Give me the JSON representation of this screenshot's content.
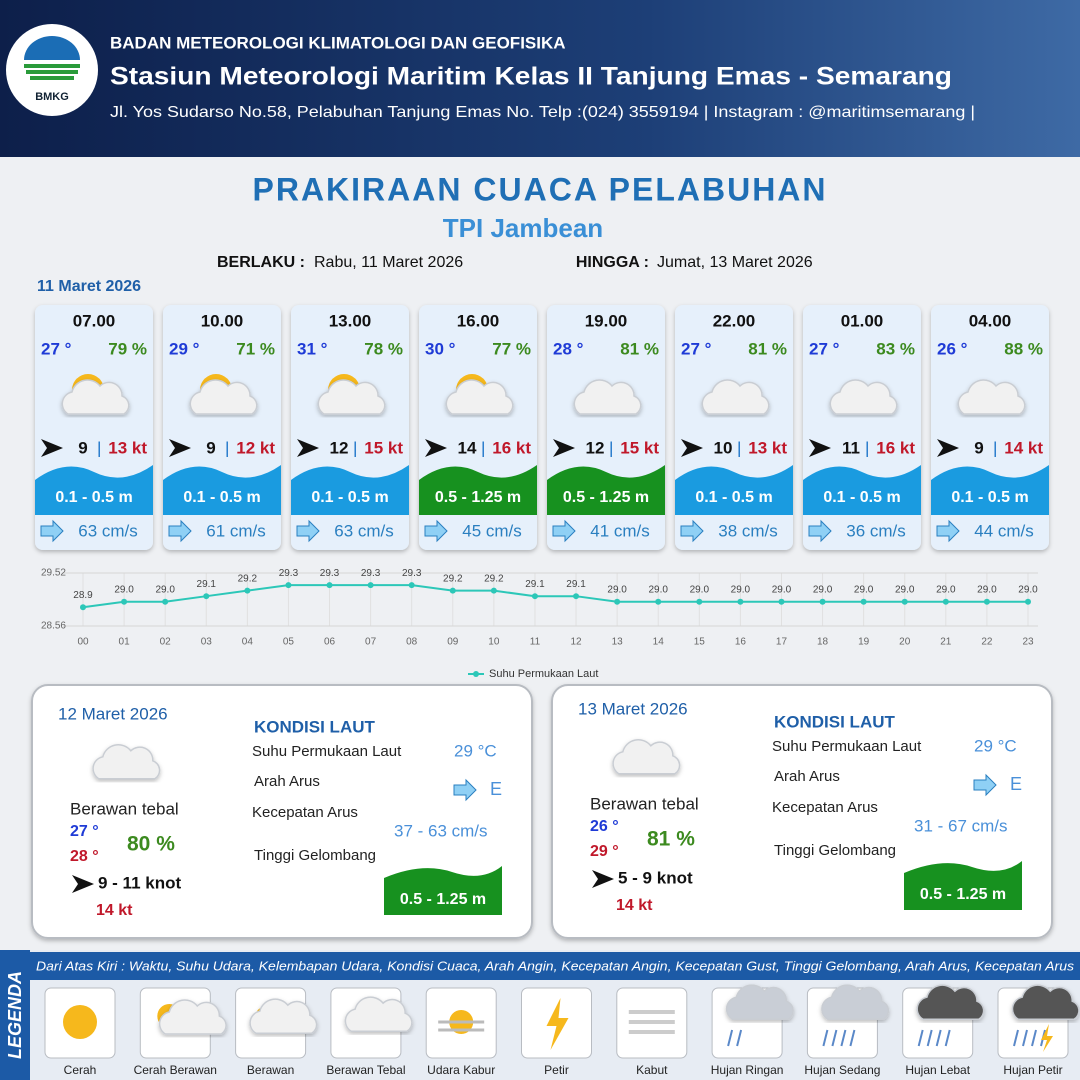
{
  "header": {
    "logo": "BMKG",
    "agency": "BADAN METEOROLOGI KLIMATOLOGI DAN GEOFISIKA",
    "station": "Stasiun Meteorologi Maritim Kelas II Tanjung Emas - Semarang",
    "address": "Jl. Yos Sudarso No.58, Pelabuhan Tanjung Emas No. Telp :(024) 3559194 | Instagram : @maritimsemarang |"
  },
  "title": "PRAKIRAAN CUACA PELABUHAN",
  "subtitle": "TPI Jambean",
  "validity": {
    "from_label": "BERLAKU :",
    "from": "Rabu, 11 Maret 2026",
    "to_label": "HINGGA :",
    "to": "Jumat, 13 Maret 2026"
  },
  "today": {
    "date": "11 Maret 2026",
    "slots": [
      {
        "time": "07.00",
        "temp": "27 °",
        "humidity": "79 %",
        "wind": "9",
        "gust": "13 kt",
        "wave": "0.1 - 0.5 m",
        "wave_color": "#1a9be0",
        "current": "63 cm/s"
      },
      {
        "time": "10.00",
        "temp": "29 °",
        "humidity": "71 %",
        "wind": "9",
        "gust": "12 kt",
        "wave": "0.1 - 0.5 m",
        "wave_color": "#1a9be0",
        "current": "61 cm/s"
      },
      {
        "time": "13.00",
        "temp": "31 °",
        "humidity": "78 %",
        "wind": "12",
        "gust": "15 kt",
        "wave": "0.1 - 0.5 m",
        "wave_color": "#1a9be0",
        "current": "63 cm/s"
      },
      {
        "time": "16.00",
        "temp": "30 °",
        "humidity": "77 %",
        "wind": "14",
        "gust": "16 kt",
        "wave": "0.5 - 1.25 m",
        "wave_color": "#17911f",
        "current": "45 cm/s"
      },
      {
        "time": "19.00",
        "temp": "28 °",
        "humidity": "81 %",
        "wind": "12",
        "gust": "15 kt",
        "wave": "0.5 - 1.25 m",
        "wave_color": "#17911f",
        "current": "41 cm/s"
      },
      {
        "time": "22.00",
        "temp": "27 °",
        "humidity": "81 %",
        "wind": "10",
        "gust": "13 kt",
        "wave": "0.1 - 0.5 m",
        "wave_color": "#1a9be0",
        "current": "38 cm/s"
      },
      {
        "time": "01.00",
        "temp": "27 °",
        "humidity": "83 %",
        "wind": "11",
        "gust": "16 kt",
        "wave": "0.1 - 0.5 m",
        "wave_color": "#1a9be0",
        "current": "36 cm/s"
      },
      {
        "time": "04.00",
        "temp": "26 °",
        "humidity": "88 %",
        "wind": "9",
        "gust": "14 kt",
        "wave": "0.1 - 0.5 m",
        "wave_color": "#1a9be0",
        "current": "44 cm/s"
      }
    ]
  },
  "chart_data": {
    "type": "line",
    "categories": [
      "00",
      "01",
      "02",
      "03",
      "04",
      "05",
      "06",
      "07",
      "08",
      "09",
      "10",
      "11",
      "12",
      "13",
      "14",
      "15",
      "16",
      "17",
      "18",
      "19",
      "20",
      "21",
      "22",
      "23"
    ],
    "series": [
      {
        "name": "Suhu Permukaan Laut",
        "color": "#2cc7b8",
        "values": [
          28.9,
          29.0,
          29.0,
          29.1,
          29.2,
          29.3,
          29.3,
          29.3,
          29.3,
          29.2,
          29.2,
          29.1,
          29.1,
          29.0,
          29.0,
          29.0,
          29.0,
          29.0,
          29.0,
          29.0,
          29.0,
          29.0,
          29.0,
          29.0
        ],
        "value_labels": [
          "28.9",
          "29.0",
          "29.0",
          "29.1",
          "29.2",
          "29.3",
          "29.3",
          "29.3",
          "29.3",
          "29.2",
          "29.2",
          "29.1",
          "29.1",
          "29.0",
          "29.0",
          "29.0",
          "29.0",
          "29.0",
          "29.0",
          "29.0",
          "29.0",
          "29.0",
          "29.0",
          "29.0"
        ]
      }
    ],
    "ylim": [
      28.56,
      29.52
    ],
    "yticks": [
      28.56,
      29.52
    ],
    "legend": "bottom"
  },
  "outlook": [
    {
      "date": "12 Maret 2026",
      "condition": "Berawan tebal",
      "temp_min": "27 °",
      "temp_max": "28 °",
      "humidity": "80 %",
      "wind": "9 - 11 knot",
      "gust": "14 kt",
      "sea": {
        "title": "KONDISI LAUT",
        "sst_label": "Suhu Permukaan Laut",
        "sst": "29 °C",
        "dir_label": "Arah Arus",
        "dir": "E",
        "speed_label": "Kecepatan Arus",
        "speed": "37 - 63 cm/s",
        "wave_label": "Tinggi Gelombang",
        "wave": "0.5 - 1.25 m"
      }
    },
    {
      "date": "13 Maret 2026",
      "condition": "Berawan tebal",
      "temp_min": "26 °",
      "temp_max": "29 °",
      "humidity": "81 %",
      "wind": "5 - 9 knot",
      "gust": "14 kt",
      "sea": {
        "title": "KONDISI LAUT",
        "sst_label": "Suhu Permukaan Laut",
        "sst": "29 °C",
        "dir_label": "Arah Arus",
        "dir": "E",
        "speed_label": "Kecepatan Arus",
        "speed": "31 - 67 cm/s",
        "wave_label": "Tinggi Gelombang",
        "wave": "0.5 - 1.25 m"
      }
    }
  ],
  "legend": {
    "title": "LEGENDA",
    "description": "Dari Atas Kiri : Waktu, Suhu Udara, Kelembapan Udara, Kondisi Cuaca, Arah Angin, Kecepatan Angin, Kecepatan Gust, Tinggi Gelombang, Arah Arus, Kecepatan Arus",
    "items": [
      "Cerah",
      "Cerah Berawan",
      "Berawan",
      "Berawan Tebal",
      "Udara Kabur",
      "Petir",
      "Kabut",
      "Hujan Ringan",
      "Hujan Sedang",
      "Hujan Lebat",
      "Hujan Petir"
    ]
  }
}
